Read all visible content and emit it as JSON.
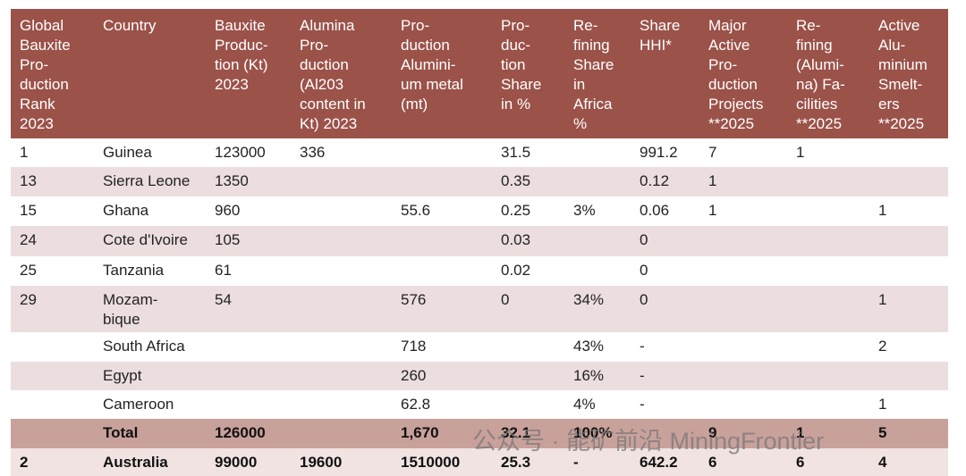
{
  "table": {
    "header": [
      "Global\nBauxite\nPro-\nduction\nRank\n2023",
      "Country",
      "Bauxite\nProduc-\ntion (Kt)\n2023",
      "Alumina\nPro-\nduction\n(Al203\ncontent in\nKt) 2023",
      "Pro-\nduction\nAlumini-\num metal\n(mt)",
      "Pro-\nduc-\ntion\nShare\nin %",
      "Re-\nfining\nShare\nin\nAfrica\n%",
      "Share\nHHI*",
      "Major\nActive\nPro-\nduction\nProjects\n**2025",
      "Re-\nfining\n(Alumi-\nna) Fa-\ncilities\n**2025",
      "Active\nAlu-\nminium\nSmelt-\ners\n**2025"
    ],
    "rows": [
      [
        "1",
        "Guinea",
        "123000",
        "336",
        null,
        "31.5",
        null,
        "991.2",
        "7",
        "1",
        null
      ],
      [
        "13",
        "Sierra Leone",
        "1350",
        null,
        null,
        "0.35",
        null,
        "0.12",
        "1",
        null,
        null
      ],
      [
        "15",
        "Ghana",
        "960",
        null,
        "55.6",
        "0.25",
        " 3%",
        "0.06",
        "1",
        null,
        "1"
      ],
      [
        "24",
        "Cote d'Ivoire",
        "105",
        null,
        null,
        "0.03",
        null,
        "0",
        null,
        null,
        null
      ],
      [
        "25",
        "Tanzania",
        "61",
        null,
        null,
        "0.02",
        null,
        "0",
        null,
        null,
        null
      ],
      [
        "29",
        "Mozam-\nbique",
        "54",
        null,
        "576",
        "0",
        "34%",
        "0",
        null,
        null,
        "1"
      ],
      [
        null,
        "South Africa",
        null,
        null,
        "718",
        null,
        "43%",
        "-",
        null,
        null,
        "2"
      ],
      [
        null,
        "Egypt",
        null,
        null,
        "260",
        null,
        "16%",
        "-",
        null,
        null,
        null
      ],
      [
        null,
        "Cameroon",
        null,
        null,
        "62.8",
        null,
        "4%",
        "-",
        null,
        null,
        "1"
      ],
      [
        null,
        " Total",
        "126000",
        null,
        "1,670",
        "32.1",
        "100%",
        null,
        "9",
        "1",
        "5"
      ],
      [
        "2",
        "Australia",
        "99000",
        "19600",
        "1510000",
        "25.3",
        "-",
        "642.2",
        "6",
        "6",
        "4"
      ]
    ]
  },
  "watermark": "公众号 · 能矿前沿 MiningFrontier"
}
